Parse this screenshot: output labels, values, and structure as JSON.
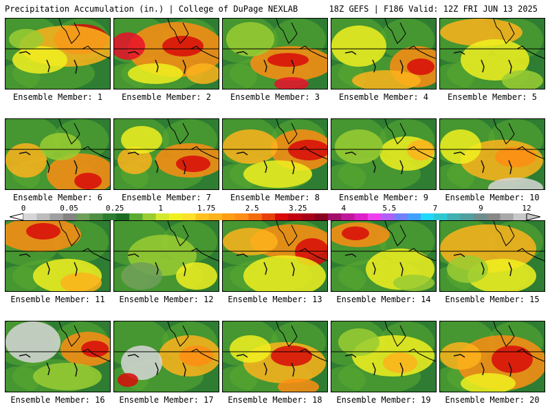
{
  "header": {
    "title_left": "Precipitation Accumulation (in.) | College of DuPage NEXLAB",
    "title_right": "18Z GEFS | F186 Valid: 12Z FRI JUN 13 2025"
  },
  "panels": [
    {
      "label": "Ensemble Member: 1",
      "blobs": [
        [
          110,
          30,
          40,
          22,
          "#d80a0a"
        ],
        [
          90,
          40,
          70,
          30,
          "#fdb31c"
        ],
        [
          50,
          60,
          40,
          20,
          "#f0f020"
        ],
        [
          30,
          30,
          25,
          15,
          "#9acd32"
        ]
      ]
    },
    {
      "label": "Ensemble Member: 2",
      "blobs": [
        [
          90,
          45,
          70,
          40,
          "#fd8d14"
        ],
        [
          100,
          40,
          30,
          15,
          "#d80a0a"
        ],
        [
          20,
          40,
          25,
          20,
          "#e8102a"
        ],
        [
          60,
          80,
          40,
          15,
          "#f0f020"
        ],
        [
          130,
          80,
          25,
          15,
          "#fdb31c"
        ]
      ]
    },
    {
      "label": "Ensemble Member: 3",
      "blobs": [
        [
          100,
          65,
          60,
          25,
          "#fd8d14"
        ],
        [
          95,
          60,
          30,
          10,
          "#d80a0a"
        ],
        [
          100,
          95,
          25,
          10,
          "#e8102a"
        ],
        [
          40,
          30,
          35,
          25,
          "#9acd32"
        ]
      ]
    },
    {
      "label": "Ensemble Member: 4",
      "blobs": [
        [
          125,
          70,
          40,
          30,
          "#fd8d14"
        ],
        [
          130,
          70,
          20,
          12,
          "#d80a0a"
        ],
        [
          40,
          40,
          40,
          30,
          "#f0f020"
        ],
        [
          80,
          90,
          50,
          15,
          "#fdb31c"
        ]
      ]
    },
    {
      "label": "Ensemble Member: 5",
      "blobs": [
        [
          60,
          20,
          60,
          20,
          "#fdb31c"
        ],
        [
          80,
          60,
          50,
          30,
          "#f0f020"
        ],
        [
          120,
          90,
          30,
          15,
          "#9acd32"
        ]
      ]
    },
    {
      "label": "Ensemble Member: 6",
      "blobs": [
        [
          110,
          80,
          50,
          30,
          "#fd8d14"
        ],
        [
          120,
          90,
          20,
          12,
          "#d80a0a"
        ],
        [
          30,
          60,
          30,
          25,
          "#fdb31c"
        ],
        [
          80,
          40,
          30,
          20,
          "#9acd32"
        ]
      ]
    },
    {
      "label": "Ensemble Member: 7",
      "blobs": [
        [
          110,
          60,
          50,
          25,
          "#fd8d14"
        ],
        [
          115,
          65,
          25,
          12,
          "#d80a0a"
        ],
        [
          30,
          60,
          25,
          20,
          "#fdb31c"
        ],
        [
          40,
          30,
          30,
          20,
          "#f0f020"
        ]
      ]
    },
    {
      "label": "Ensemble Member: 8",
      "blobs": [
        [
          115,
          45,
          45,
          30,
          "#fd8d14"
        ],
        [
          125,
          45,
          30,
          15,
          "#d80a0a"
        ],
        [
          40,
          40,
          40,
          25,
          "#fdb31c"
        ],
        [
          80,
          80,
          50,
          20,
          "#f0f020"
        ]
      ]
    },
    {
      "label": "Ensemble Member: 9",
      "blobs": [
        [
          110,
          50,
          40,
          25,
          "#f0f020"
        ],
        [
          130,
          45,
          20,
          15,
          "#fdb31c"
        ],
        [
          40,
          40,
          35,
          25,
          "#9acd32"
        ]
      ]
    },
    {
      "label": "Ensemble Member: 10",
      "blobs": [
        [
          90,
          60,
          60,
          30,
          "#fdb31c"
        ],
        [
          110,
          55,
          30,
          15,
          "#fd8d14"
        ],
        [
          30,
          40,
          30,
          25,
          "#f0f020"
        ],
        [
          110,
          100,
          40,
          15,
          "#d6d6d6"
        ]
      ]
    },
    {
      "label": "Ensemble Member: 11",
      "blobs": [
        [
          50,
          20,
          60,
          25,
          "#fd8d14"
        ],
        [
          55,
          15,
          25,
          12,
          "#d80a0a"
        ],
        [
          90,
          80,
          50,
          25,
          "#f0f020"
        ],
        [
          110,
          90,
          30,
          15,
          "#fdb31c"
        ]
      ]
    },
    {
      "label": "Ensemble Member: 12",
      "blobs": [
        [
          70,
          50,
          50,
          30,
          "#9acd32"
        ],
        [
          120,
          80,
          30,
          20,
          "#f0f020"
        ],
        [
          40,
          80,
          30,
          20,
          "#6e9f5b"
        ]
      ]
    },
    {
      "label": "Ensemble Member: 13",
      "blobs": [
        [
          100,
          30,
          60,
          25,
          "#fd8d14"
        ],
        [
          130,
          45,
          25,
          20,
          "#d80a0a"
        ],
        [
          90,
          80,
          60,
          30,
          "#f0f020"
        ],
        [
          40,
          30,
          40,
          20,
          "#fdb31c"
        ]
      ]
    },
    {
      "label": "Ensemble Member: 14",
      "blobs": [
        [
          40,
          20,
          45,
          18,
          "#fd8d14"
        ],
        [
          35,
          18,
          20,
          10,
          "#d80a0a"
        ],
        [
          100,
          70,
          50,
          30,
          "#f0f020"
        ],
        [
          120,
          90,
          30,
          12,
          "#9acd32"
        ]
      ]
    },
    {
      "label": "Ensemble Member: 15",
      "blobs": [
        [
          70,
          40,
          70,
          35,
          "#fdb31c"
        ],
        [
          90,
          80,
          50,
          25,
          "#f0f020"
        ],
        [
          40,
          70,
          30,
          20,
          "#9acd32"
        ]
      ]
    },
    {
      "label": "Ensemble Member: 16",
      "blobs": [
        [
          120,
          40,
          40,
          25,
          "#fd8d14"
        ],
        [
          130,
          40,
          20,
          12,
          "#d80a0a"
        ],
        [
          40,
          30,
          40,
          30,
          "#d6d6d6"
        ],
        [
          90,
          80,
          50,
          20,
          "#9acd32"
        ]
      ]
    },
    {
      "label": "Ensemble Member: 17",
      "blobs": [
        [
          110,
          50,
          45,
          30,
          "#fdb31c"
        ],
        [
          120,
          50,
          25,
          15,
          "#fd8d14"
        ],
        [
          40,
          60,
          30,
          25,
          "#d6d6d6"
        ],
        [
          20,
          85,
          15,
          10,
          "#d80a0a"
        ]
      ]
    },
    {
      "label": "Ensemble Member: 18",
      "blobs": [
        [
          90,
          60,
          60,
          30,
          "#fdb31c"
        ],
        [
          100,
          50,
          30,
          15,
          "#d80a0a"
        ],
        [
          40,
          40,
          30,
          20,
          "#f0f020"
        ],
        [
          110,
          95,
          30,
          12,
          "#fd8d14"
        ]
      ]
    },
    {
      "label": "Ensemble Member: 19",
      "blobs": [
        [
          90,
          50,
          60,
          30,
          "#f0f020"
        ],
        [
          100,
          60,
          25,
          15,
          "#fdb31c"
        ],
        [
          40,
          30,
          30,
          20,
          "#9acd32"
        ]
      ]
    },
    {
      "label": "Ensemble Member: 20",
      "blobs": [
        [
          90,
          60,
          65,
          40,
          "#fd8d14"
        ],
        [
          105,
          55,
          30,
          20,
          "#d80a0a"
        ],
        [
          30,
          50,
          30,
          20,
          "#fdb31c"
        ],
        [
          70,
          90,
          40,
          15,
          "#f0f020"
        ]
      ]
    }
  ],
  "colorbar": {
    "labels": [
      "0",
      "0.05",
      "0.25",
      "1",
      "1.75",
      "2.5",
      "3.25",
      "4",
      "5.5",
      "7",
      "9",
      "12"
    ],
    "colors": [
      "#d6d6d6",
      "#bcbcbc",
      "#a0a0a0",
      "#848484",
      "#6e9f5b",
      "#4f8f44",
      "#2e7d32",
      "#1b6b23",
      "#5bab32",
      "#9acd32",
      "#d4e830",
      "#f0f020",
      "#fde02a",
      "#fdc222",
      "#fdb31c",
      "#fd9d16",
      "#fd8d14",
      "#f46d0d",
      "#e8400a",
      "#d80a0a",
      "#c00010",
      "#a60018",
      "#8a0020",
      "#a0106a",
      "#c0189c",
      "#de20c8",
      "#ee40ee",
      "#b060f4",
      "#7080f8",
      "#40a0fc",
      "#20d8fc",
      "#30c8d0",
      "#40b0b0",
      "#50a0a0",
      "#6e8e8e",
      "#888888",
      "#a8a8a8",
      "#c8c8c8"
    ]
  },
  "map_colors": {
    "background": "#2e7d32",
    "land_mid": "#5bab32",
    "frame": "#000000"
  }
}
